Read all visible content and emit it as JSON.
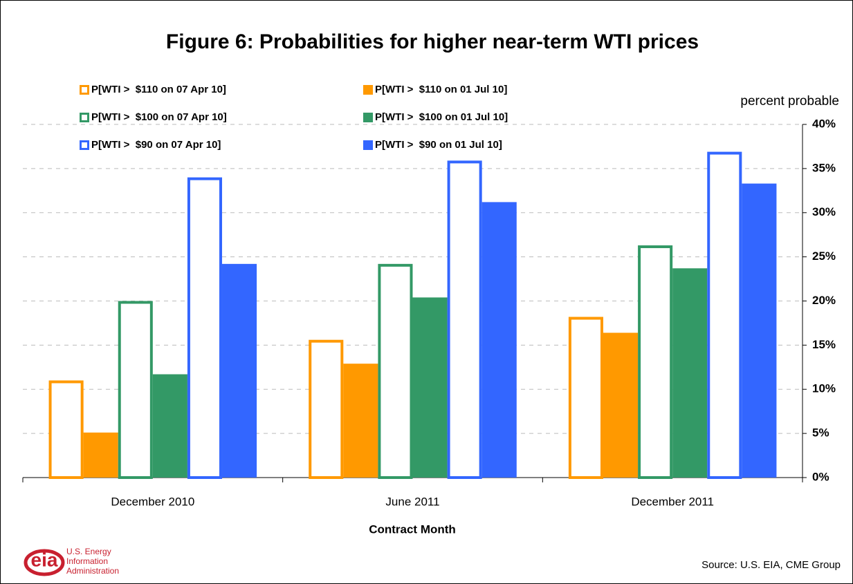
{
  "chart_data": {
    "type": "bar",
    "title": "Figure 6: Probabilities for higher near-term WTI prices",
    "y_axis_label": "percent probable",
    "x_axis_label": "Contract Month",
    "source": "Source:  U.S. EIA, CME Group",
    "logo": {
      "mark": "eia",
      "lines": [
        "U.S. Energy",
        "Information",
        "Administration"
      ]
    },
    "categories": [
      "December 2010",
      "June 2011",
      "December 2011"
    ],
    "series": [
      {
        "name": "P[WTI >  $110 on 07 Apr 10]",
        "color": "#ff9900",
        "style": "outline",
        "values": [
          11,
          15.6,
          18.2
        ]
      },
      {
        "name": "P[WTI >  $110 on 01 Jul 10]",
        "color": "#ff9900",
        "style": "solid",
        "values": [
          5.1,
          12.9,
          16.4
        ]
      },
      {
        "name": "P[WTI >  $100 on 07 Apr 10]",
        "color": "#339966",
        "style": "outline",
        "values": [
          20,
          24.2,
          26.3
        ]
      },
      {
        "name": "P[WTI >  $100 on 01 Jul 10]",
        "color": "#339966",
        "style": "solid",
        "values": [
          11.7,
          20.4,
          23.7
        ]
      },
      {
        "name": "P[WTI >  $90 on 07 Apr 10]",
        "color": "#3366ff",
        "style": "outline",
        "values": [
          34,
          35.9,
          36.9
        ]
      },
      {
        "name": "P[WTI >  $90 on 01 Jul 10]",
        "color": "#3366ff",
        "style": "solid",
        "values": [
          24.2,
          31.2,
          33.3
        ]
      }
    ],
    "ylim": [
      0,
      40
    ],
    "yticks": [
      {
        "value": 0,
        "label": "0%"
      },
      {
        "value": 5,
        "label": "5%"
      },
      {
        "value": 10,
        "label": "10%"
      },
      {
        "value": 15,
        "label": "15%"
      },
      {
        "value": 20,
        "label": "20%"
      },
      {
        "value": 25,
        "label": "25%"
      },
      {
        "value": 30,
        "label": "30%"
      },
      {
        "value": 35,
        "label": "35%"
      },
      {
        "value": 40,
        "label": "40%"
      }
    ],
    "y_axis_side": "right",
    "grid": true
  }
}
